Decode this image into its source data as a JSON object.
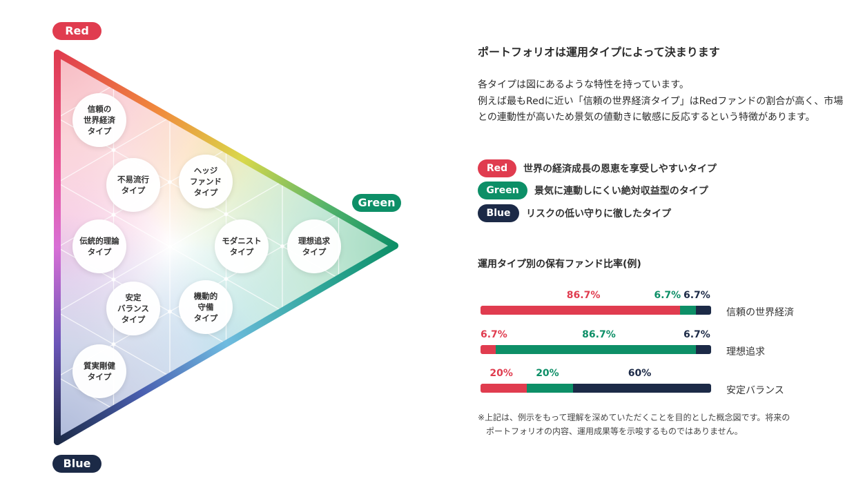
{
  "triangle": {
    "corner_labels": {
      "red": "Red",
      "green": "Green",
      "blue": "Blue"
    },
    "types": [
      "信頼の\n世界経済\nタイプ",
      "不易流行\nタイプ",
      "ヘッジ\nファンド\nタイプ",
      "伝統的理論\nタイプ",
      "モダニスト\nタイプ",
      "理想追求\nタイプ",
      "安定\nバランス\nタイプ",
      "機動的\n守備\nタイプ",
      "質実剛健\nタイプ"
    ]
  },
  "panel": {
    "title": "ポートフォリオは運用タイプによって決まります",
    "description": "各タイプは図にあるような特性を持っています。\n例えば最もRedに近い「信頼の世界経済タイプ」はRedファンドの割合が高く、市場との連動性が高いため景気の値動きに敏感に反応するという特徴があります。",
    "legend": [
      {
        "label": "Red",
        "text": "世界の経済成長の恩恵を享受しやすいタイプ",
        "color": "#e03c4f"
      },
      {
        "label": "Green",
        "text": "景気に連動しにくい絶対収益型のタイプ",
        "color": "#0d8f67"
      },
      {
        "label": "Blue",
        "text": "リスクの低い守りに徹したタイプ",
        "color": "#1c2a47"
      }
    ],
    "chart_title": "運用タイプ別の保有ファンド比率(例)",
    "note": "※上記は、例示をもって理解を深めていただくことを目的とした概念図です。将来の\n　ポートフォリオの内容、運用成果等を示唆するものではありません。"
  },
  "colors": {
    "red": "#e03c4f",
    "green": "#0d8f67",
    "blue": "#1c2a47"
  },
  "chart_data": {
    "type": "bar",
    "stacked": true,
    "orientation": "horizontal",
    "categories": [
      "信頼の世界経済",
      "理想追求",
      "安定バランス"
    ],
    "series": [
      {
        "name": "Red",
        "values": [
          86.7,
          6.7,
          20
        ],
        "labels": [
          "86.7%",
          "6.7%",
          "20%"
        ]
      },
      {
        "name": "Green",
        "values": [
          6.7,
          86.7,
          20
        ],
        "labels": [
          "6.7%",
          "86.7%",
          "20%"
        ]
      },
      {
        "name": "Blue",
        "values": [
          6.7,
          6.7,
          60
        ],
        "labels": [
          "6.7%",
          "6.7%",
          "60%"
        ]
      }
    ],
    "title": "運用タイプ別の保有ファンド比率(例)",
    "xlim": [
      0,
      100
    ]
  }
}
